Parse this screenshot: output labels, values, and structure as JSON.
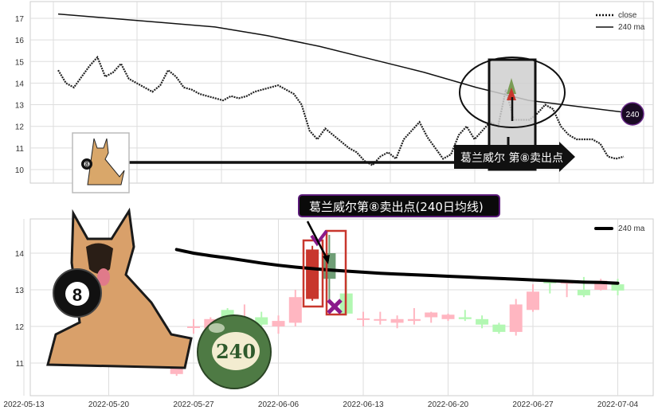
{
  "colors": {
    "up": "#ffb6c1",
    "down": "#b2f7b2",
    "highlight_up": "#c8372d",
    "highlight_down": "#6f9e76",
    "box": "#c8372d",
    "marker": "#8b1a8b",
    "label_border": "#5a1a78",
    "ball_240": "#4e7a44",
    "ma_badge": "#1a0a24"
  },
  "chart_data": [
    {
      "type": "line",
      "ylim": [
        9.4,
        17.8
      ],
      "yticks": [
        10,
        11,
        12,
        13,
        14,
        15,
        16,
        17
      ],
      "grid": true,
      "legend_placement": "top-right",
      "series": [
        {
          "name": "close",
          "style": "dotted",
          "values": [
            14.6,
            14.0,
            13.8,
            14.3,
            14.8,
            15.2,
            14.3,
            14.5,
            14.9,
            14.2,
            14.0,
            13.8,
            13.6,
            13.9,
            14.6,
            14.3,
            13.8,
            13.7,
            13.5,
            13.4,
            13.3,
            13.2,
            13.4,
            13.3,
            13.4,
            13.6,
            13.7,
            13.8,
            13.9,
            13.7,
            13.5,
            13.0,
            11.8,
            11.4,
            11.9,
            11.6,
            11.3,
            11.0,
            10.8,
            10.4,
            10.2,
            10.6,
            10.8,
            10.5,
            11.4,
            11.8,
            12.2,
            11.5,
            11.0,
            10.5,
            10.7,
            11.6,
            12.0,
            11.4,
            11.8,
            12.2,
            12.0,
            13.7,
            12.3,
            12.3,
            12.3,
            12.6,
            13.0,
            12.8,
            12.0,
            11.6,
            11.4,
            11.4,
            11.4,
            11.2,
            10.6,
            10.5,
            10.6
          ]
        },
        {
          "name": "240 ma",
          "style": "solid",
          "values": [
            17.2,
            17.0,
            16.8,
            16.6,
            16.2,
            15.7,
            15.1,
            14.5,
            13.8,
            13.2,
            12.9,
            12.6
          ]
        }
      ],
      "annotations": {
        "sell_label": "葛兰威尔 第⑧卖出点",
        "ma_badge": "240"
      }
    },
    {
      "type": "candlestick",
      "ylim": [
        10.5,
        14.9
      ],
      "yticks": [
        11,
        12,
        13,
        14
      ],
      "grid": true,
      "legend_placement": "top-right",
      "xticks": [
        "2022-05-13",
        "2022-05-20",
        "2022-05-27",
        "2022-06-06",
        "2022-06-13",
        "2022-06-20",
        "2022-06-27",
        "2022-07-04"
      ],
      "candles": [
        {
          "date": "2022-05-26",
          "o": 10.7,
          "h": 11.0,
          "l": 10.65,
          "c": 11.0
        },
        {
          "date": "2022-05-27",
          "o": 11.97,
          "h": 12.2,
          "l": 11.8,
          "c": 12.0
        },
        {
          "date": "2022-05-30",
          "o": 11.95,
          "h": 12.25,
          "l": 11.9,
          "c": 12.2
        },
        {
          "date": "2022-05-31",
          "o": 12.45,
          "h": 12.5,
          "l": 12.15,
          "c": 12.2
        },
        {
          "date": "2022-06-01",
          "o": 12.0,
          "h": 12.6,
          "l": 11.9,
          "c": 12.05
        },
        {
          "date": "2022-06-02",
          "o": 12.25,
          "h": 12.4,
          "l": 11.9,
          "c": 12.05
        },
        {
          "date": "2022-06-06",
          "o": 12.0,
          "h": 12.3,
          "l": 11.8,
          "c": 12.15
        },
        {
          "date": "2022-06-07",
          "o": 12.1,
          "h": 13.0,
          "l": 12.0,
          "c": 12.8
        },
        {
          "date": "2022-06-08",
          "o": 12.75,
          "h": 14.2,
          "l": 12.7,
          "c": 14.1,
          "highlight": true
        },
        {
          "date": "2022-06-09",
          "o": 14.0,
          "h": 14.5,
          "l": 12.7,
          "c": 13.3,
          "highlight": true
        },
        {
          "date": "2022-06-10",
          "o": 12.9,
          "h": 13.4,
          "l": 12.3,
          "c": 12.35
        },
        {
          "date": "2022-06-13",
          "o": 12.2,
          "h": 12.4,
          "l": 12.0,
          "c": 12.22
        },
        {
          "date": "2022-06-14",
          "o": 12.18,
          "h": 12.4,
          "l": 12.05,
          "c": 12.2
        },
        {
          "date": "2022-06-15",
          "o": 12.1,
          "h": 12.3,
          "l": 11.95,
          "c": 12.2
        },
        {
          "date": "2022-06-16",
          "o": 12.15,
          "h": 12.5,
          "l": 12.05,
          "c": 12.2
        },
        {
          "date": "2022-06-17",
          "o": 12.25,
          "h": 12.4,
          "l": 12.1,
          "c": 12.38
        },
        {
          "date": "2022-06-20",
          "o": 12.2,
          "h": 12.35,
          "l": 12.15,
          "c": 12.32
        },
        {
          "date": "2022-06-21",
          "o": 12.25,
          "h": 12.45,
          "l": 12.15,
          "c": 12.2
        },
        {
          "date": "2022-06-22",
          "o": 12.2,
          "h": 12.3,
          "l": 11.95,
          "c": 12.05
        },
        {
          "date": "2022-06-23",
          "o": 12.05,
          "h": 12.1,
          "l": 11.8,
          "c": 11.85
        },
        {
          "date": "2022-06-24",
          "o": 11.85,
          "h": 12.75,
          "l": 11.75,
          "c": 12.6
        },
        {
          "date": "2022-06-27",
          "o": 12.45,
          "h": 13.15,
          "l": 12.4,
          "c": 12.95
        },
        {
          "date": "2022-06-28",
          "o": 13.22,
          "h": 13.25,
          "l": 12.9,
          "c": 13.2
        },
        {
          "date": "2022-06-29",
          "o": 13.2,
          "h": 13.2,
          "l": 12.8,
          "c": 13.21
        },
        {
          "date": "2022-06-30",
          "o": 13.0,
          "h": 13.35,
          "l": 12.8,
          "c": 12.85
        },
        {
          "date": "2022-07-01",
          "o": 13.0,
          "h": 13.3,
          "l": 12.98,
          "c": 13.25
        },
        {
          "date": "2022-07-04",
          "o": 13.15,
          "h": 13.3,
          "l": 12.85,
          "c": 12.98
        }
      ],
      "ma": {
        "name": "240 ma",
        "values": [
          14.1,
          14.0,
          13.93,
          13.87,
          13.8,
          13.73,
          13.67,
          13.62,
          13.58,
          13.54,
          13.51,
          13.48,
          13.45,
          13.43,
          13.41,
          13.39,
          13.37,
          13.35,
          13.33,
          13.31,
          13.29,
          13.27,
          13.25,
          13.23,
          13.21,
          13.2,
          13.18
        ]
      },
      "annotations": {
        "sell_label": "葛兰威尔第⑧卖出点(240日均线)",
        "ball_label": "240",
        "eight_ball": "8"
      }
    }
  ]
}
